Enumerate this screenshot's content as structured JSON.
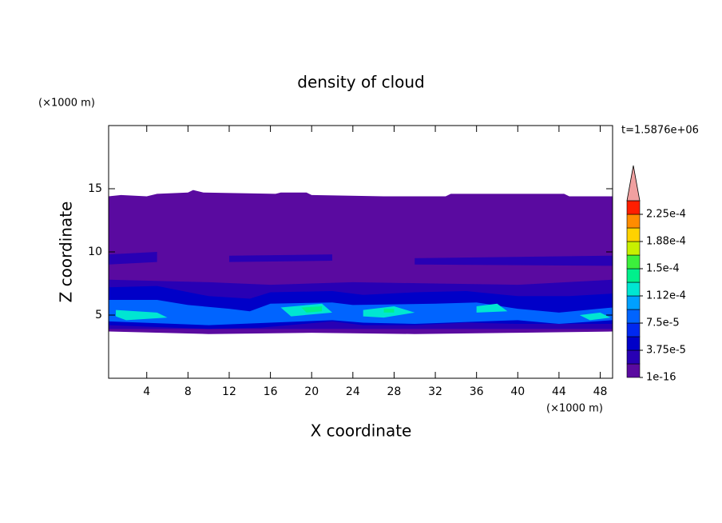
{
  "chart_data": {
    "type": "contour",
    "title": "density of cloud",
    "xlabel": "X coordinate",
    "ylabel": "Z coordinate",
    "xunit": "(×1000 m)",
    "yunit": "(×1000 m)",
    "annotation": "t=1.5876e+06",
    "xlim": [
      0.3,
      49.2
    ],
    "ylim": [
      0,
      20
    ],
    "xticks": [
      4,
      8,
      12,
      16,
      20,
      24,
      28,
      32,
      36,
      40,
      44,
      48
    ],
    "yticks": [
      5,
      10,
      15
    ],
    "levels": [
      1e-16,
      1.875e-05,
      3.75e-05,
      5.625e-05,
      7.5e-05,
      9.375e-05,
      0.0001125,
      0.00013125,
      0.00015,
      0.00016875,
      0.0001875,
      0.00020625,
      0.000225,
      0.00024375
    ],
    "colors": [
      "#5a0aa0",
      "#2800b4",
      "#0000c8",
      "#0028f0",
      "#0064ff",
      "#00a0ff",
      "#00e6d2",
      "#00f08c",
      "#3cf03c",
      "#c8f000",
      "#ffd200",
      "#ff8c00",
      "#ff1e00"
    ],
    "extend_color": "#f0a0a0",
    "colorbar_ticks": [
      {
        "value": 1e-16,
        "label": "1e-16"
      },
      {
        "value": 3.75e-05,
        "label": "3.75e-5"
      },
      {
        "value": 7.5e-05,
        "label": "7.5e-5"
      },
      {
        "value": 0.0001125,
        "label": "1.12e-4"
      },
      {
        "value": 0.00015,
        "label": "1.5e-4"
      },
      {
        "value": 0.0001875,
        "label": "1.88e-4"
      },
      {
        "value": 0.000225,
        "label": "2.25e-4"
      }
    ],
    "regions": [
      {
        "value": 1e-16,
        "x": [
          0.3,
          1.5,
          4,
          5,
          8,
          8.5,
          9.5,
          16.5,
          17,
          19.5,
          20,
          27,
          33,
          33.5,
          44.5,
          45,
          49.2,
          49.2,
          40,
          30,
          20,
          10,
          0.3
        ],
        "z": [
          14.4,
          14.5,
          14.4,
          14.6,
          14.7,
          14.9,
          14.7,
          14.6,
          14.7,
          14.7,
          14.5,
          14.4,
          14.4,
          14.6,
          14.6,
          14.4,
          14.4,
          3.7,
          3.6,
          3.5,
          3.6,
          3.5,
          3.7
        ]
      },
      {
        "value": 1.875e-05,
        "x": [
          0.3,
          10,
          16,
          24,
          32,
          40,
          49.2,
          49.2,
          0.3
        ],
        "z": [
          7.8,
          7.6,
          7.4,
          7.6,
          7.5,
          7.4,
          7.8,
          3.9,
          3.9
        ]
      },
      {
        "value": 1.875e-05,
        "x": [
          0.3,
          5,
          5,
          0.3
        ],
        "z": [
          9.8,
          10,
          9.2,
          9.0
        ]
      },
      {
        "value": 1.875e-05,
        "x": [
          12,
          22,
          22,
          12
        ],
        "z": [
          9.7,
          9.8,
          9.3,
          9.2
        ]
      },
      {
        "value": 1.875e-05,
        "x": [
          30,
          49.2,
          49.2,
          30
        ],
        "z": [
          9.5,
          9.7,
          8.9,
          9.0
        ]
      },
      {
        "value": 3.75e-05,
        "x": [
          0.3,
          5,
          10,
          14,
          16,
          22,
          25,
          30,
          35,
          40,
          45,
          49.2,
          49.2,
          40,
          35,
          30,
          25,
          22,
          15,
          10,
          0.3
        ],
        "z": [
          7.2,
          7.3,
          6.5,
          6.3,
          6.8,
          6.9,
          6.6,
          6.8,
          6.9,
          6.5,
          6.5,
          6.7,
          4.3,
          4.3,
          4.4,
          4.2,
          4.2,
          4.5,
          4.0,
          3.9,
          4.2
        ]
      },
      {
        "value": 7.5e-05,
        "x": [
          0.3,
          5,
          8,
          12,
          14,
          16,
          22,
          24,
          32,
          36,
          40,
          44,
          49.2,
          49.2,
          44,
          40,
          30,
          25,
          22,
          16,
          10,
          0.3
        ],
        "z": [
          6.2,
          6.2,
          5.8,
          5.5,
          5.3,
          5.9,
          6.0,
          5.8,
          5.9,
          6.0,
          5.5,
          5.2,
          5.6,
          4.6,
          4.3,
          4.6,
          4.3,
          4.4,
          4.6,
          4.4,
          4.2,
          4.5
        ]
      },
      {
        "value": 0.0001125,
        "x": [
          1,
          5,
          6,
          2,
          1
        ],
        "z": [
          5.4,
          5.2,
          4.8,
          4.6,
          4.9
        ]
      },
      {
        "value": 0.0001125,
        "x": [
          17,
          21,
          22,
          18
        ],
        "z": [
          5.6,
          5.9,
          5.2,
          4.9
        ]
      },
      {
        "value": 0.0001125,
        "x": [
          25,
          28,
          30,
          27,
          25
        ],
        "z": [
          5.4,
          5.7,
          5.2,
          4.8,
          4.9
        ]
      },
      {
        "value": 0.0001125,
        "x": [
          36,
          38,
          39,
          36
        ],
        "z": [
          5.7,
          5.9,
          5.3,
          5.2
        ]
      },
      {
        "value": 0.0001125,
        "x": [
          46,
          48,
          49,
          47
        ],
        "z": [
          5.0,
          5.2,
          4.8,
          4.6
        ]
      },
      {
        "value": 0.00013125,
        "x": [
          19,
          21,
          21,
          19.5
        ],
        "z": [
          5.6,
          5.7,
          5.3,
          5.2
        ]
      },
      {
        "value": 0.00013125,
        "x": [
          27,
          28,
          28,
          27
        ],
        "z": [
          5.5,
          5.5,
          5.2,
          5.2
        ]
      }
    ]
  }
}
